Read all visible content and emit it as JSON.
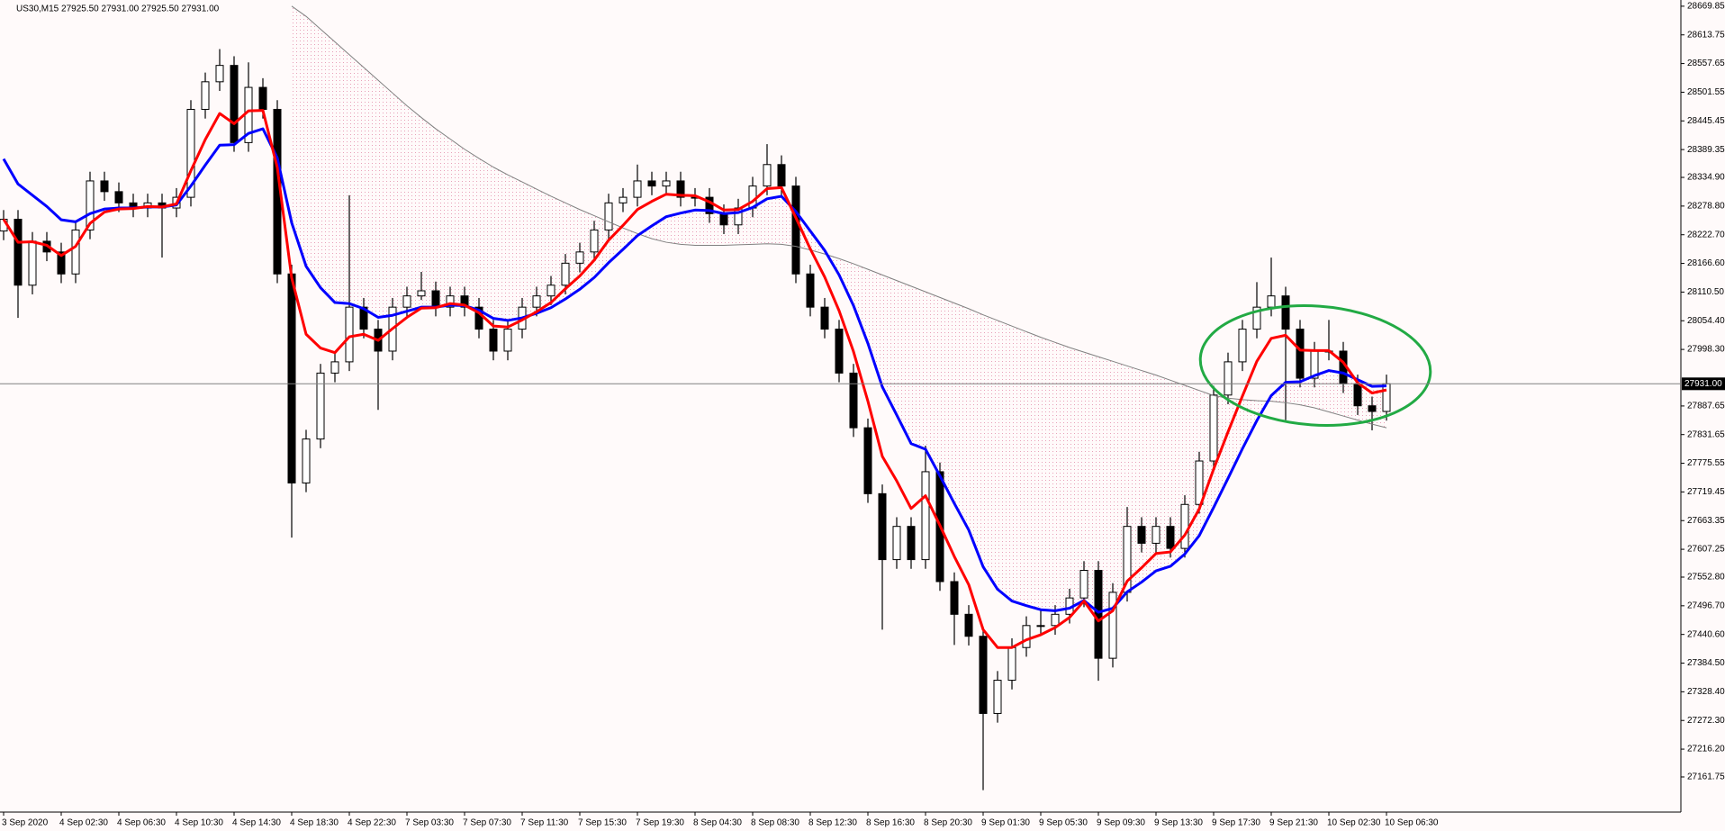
{
  "chart_data": {
    "type": "candlestick",
    "title": "US30,M15  27925.50 27931.00 27925.50 27931.00",
    "grid": false,
    "bull_color": "#ffffff",
    "bear_color": "#000000",
    "ylim": [
      27093,
      28682
    ],
    "yticks": [
      28669.85,
      28613.75,
      28557.65,
      28501.55,
      28445.45,
      28389.35,
      {
        "value": 28334.9,
        "label": "28334.90"
      },
      {
        "value": 28278.8,
        "label": "28278.80"
      },
      {
        "value": 28222.7,
        "label": "28222.70"
      },
      {
        "value": 28166.6,
        "label": "28166.60"
      },
      {
        "value": 28110.5,
        "label": "28110.50"
      },
      {
        "value": 28054.4,
        "label": "28054.40"
      },
      {
        "value": 27998.3,
        "label": "27998.30"
      },
      27887.65,
      27831.65,
      27775.55,
      27719.45,
      27663.35,
      27607.25,
      {
        "value": 27552.8,
        "label": "27552.80"
      },
      {
        "value": 27496.7,
        "label": "27496.70"
      },
      {
        "value": 27440.6,
        "label": "27440.60"
      },
      {
        "value": 27384.5,
        "label": "27384.50"
      },
      {
        "value": 27328.4,
        "label": "27328.40"
      },
      {
        "value": 27272.3,
        "label": "27272.30"
      },
      {
        "value": 27216.2,
        "label": "27216.20"
      },
      27161.75
    ],
    "price_line": {
      "value": 27931,
      "label": "27931.00"
    },
    "categories": [
      "3 Sep 2020",
      null,
      null,
      null,
      "4 Sep 02:30",
      null,
      null,
      null,
      "4 Sep 06:30",
      null,
      null,
      null,
      "4 Sep 10:30",
      null,
      null,
      null,
      "4 Sep 14:30",
      null,
      null,
      null,
      "4 Sep 18:30",
      null,
      null,
      null,
      "4 Sep 22:30",
      null,
      null,
      null,
      "7 Sep 03:30",
      null,
      null,
      null,
      "7 Sep 07:30",
      null,
      null,
      null,
      "7 Sep 11:30",
      null,
      null,
      null,
      "7 Sep 15:30",
      null,
      null,
      null,
      "7 Sep 19:30",
      null,
      null,
      null,
      "8 Sep 04:30",
      null,
      null,
      null,
      "8 Sep 08:30",
      null,
      null,
      null,
      "8 Sep 12:30",
      null,
      null,
      null,
      "8 Sep 16:30",
      null,
      null,
      null,
      "8 Sep 20:30",
      null,
      null,
      null,
      "9 Sep 01:30",
      null,
      null,
      null,
      "9 Sep 05:30",
      null,
      null,
      null,
      "9 Sep 09:30",
      null,
      null,
      null,
      "9 Sep 13:30",
      null,
      null,
      null,
      "9 Sep 17:30",
      null,
      null,
      null,
      "9 Sep 21:30",
      null,
      null,
      null,
      "10 Sep 02:30",
      null,
      null,
      null,
      "10 Sep 06:30"
    ],
    "open": [
      28230,
      28253,
      28124,
      28210,
      28189,
      28146,
      28232,
      28328,
      28307,
      28285,
      28275,
      28285,
      28275,
      28296,
      28468,
      28522,
      28554,
      28403,
      28511,
      28468,
      28146,
      27737,
      27823,
      27952,
      27974,
      28081,
      28038,
      27995,
      28081,
      28103,
      28113,
      28081,
      28103,
      28081,
      28038,
      27995,
      28038,
      28081,
      28103,
      28124,
      28167,
      28189,
      28232,
      28285,
      28296,
      28328,
      28318,
      28328,
      28296,
      28296,
      28264,
      28242,
      28275,
      28318,
      28360,
      28318,
      28146,
      28081,
      28038,
      27952,
      27845,
      27716,
      27587,
      27652,
      27587,
      27759,
      27544,
      27480,
      27437,
      27286,
      27351,
      27415,
      27458,
      27458,
      27480,
      27512,
      27566,
      27394,
      27523,
      27652,
      27619,
      27652,
      27609,
      27695,
      27780,
      27909,
      27974,
      28038,
      28081,
      28103,
      28038,
      27942,
      27995,
      27995,
      27931,
      27888,
      27877
    ],
    "high": [
      28271,
      28271,
      28228,
      28228,
      28207,
      28250,
      28346,
      28346,
      28325,
      28303,
      28303,
      28303,
      28314,
      28486,
      28540,
      28586,
      28572,
      28560,
      28529,
      28486,
      28164,
      27841,
      27970,
      27992,
      28300,
      28099,
      28056,
      28099,
      28121,
      28150,
      28131,
      28121,
      28121,
      28099,
      28056,
      28056,
      28099,
      28121,
      28142,
      28185,
      28207,
      28250,
      28303,
      28314,
      28360,
      28346,
      28346,
      28346,
      28314,
      28314,
      28282,
      28293,
      28336,
      28400,
      28378,
      28336,
      28164,
      28099,
      28056,
      27970,
      27863,
      27734,
      27670,
      27670,
      27810,
      27777,
      27562,
      27498,
      27455,
      27369,
      27433,
      27476,
      27490,
      27498,
      27530,
      27584,
      27584,
      27541,
      27690,
      27670,
      27670,
      27670,
      27713,
      27798,
      27927,
      27992,
      28056,
      28130,
      28178,
      28121,
      28056,
      28013,
      28056,
      28013,
      27949,
      27906,
      27949
    ],
    "low": [
      28212,
      28060,
      28106,
      28171,
      28128,
      28128,
      28214,
      28289,
      28267,
      28257,
      28257,
      28178,
      28257,
      28278,
      28450,
      28504,
      28385,
      28385,
      28450,
      28128,
      27630,
      27719,
      27805,
      27934,
      27956,
      28020,
      27880,
      27977,
      28063,
      28095,
      28063,
      28063,
      28063,
      28020,
      27977,
      27977,
      28020,
      28063,
      28085,
      28106,
      28149,
      28171,
      28214,
      28267,
      28278,
      28300,
      28300,
      28278,
      28278,
      28246,
      28224,
      28224,
      28257,
      28300,
      28300,
      28128,
      28063,
      28020,
      27934,
      27827,
      27698,
      27450,
      27569,
      27569,
      27569,
      27526,
      27420,
      27419,
      27136,
      27268,
      27333,
      27397,
      27440,
      27440,
      27462,
      27494,
      27350,
      27376,
      27505,
      27601,
      27601,
      27591,
      27591,
      27677,
      27762,
      27891,
      27956,
      28020,
      28063,
      27860,
      27924,
      27924,
      27977,
      27913,
      27870,
      27840,
      27859
    ],
    "close": [
      28253,
      28124,
      28210,
      28189,
      28146,
      28232,
      28328,
      28307,
      28285,
      28275,
      28285,
      28275,
      28296,
      28468,
      28522,
      28554,
      28403,
      28511,
      28468,
      28146,
      27737,
      27823,
      27952,
      27974,
      28081,
      28038,
      27995,
      28081,
      28103,
      28113,
      28081,
      28103,
      28081,
      28038,
      27995,
      28038,
      28081,
      28103,
      28124,
      28167,
      28189,
      28232,
      28285,
      28296,
      28328,
      28318,
      28328,
      28296,
      28296,
      28264,
      28242,
      28275,
      28318,
      28360,
      28318,
      28146,
      28081,
      28038,
      27952,
      27845,
      27716,
      27587,
      27652,
      27587,
      27759,
      27544,
      27480,
      27437,
      27286,
      27351,
      27415,
      27458,
      27458,
      27480,
      27512,
      27566,
      27394,
      27523,
      27652,
      27619,
      27652,
      27609,
      27695,
      27780,
      27909,
      27974,
      28038,
      28081,
      28103,
      28038,
      27942,
      27995,
      27995,
      27931,
      27888,
      27877,
      27931
    ],
    "lines": [
      {
        "color": "#808080",
        "values": [
          null,
          null,
          null,
          null,
          null,
          null,
          null,
          null,
          null,
          null,
          null,
          null,
          null,
          null,
          null,
          null,
          null,
          null,
          null,
          null,
          28670,
          28650,
          28625,
          28600,
          28575,
          28550,
          28525,
          28500,
          28475,
          28452,
          28430,
          28410,
          28390,
          28372,
          28355,
          28340,
          28326,
          28312,
          28298,
          28285,
          28272,
          28260,
          28248,
          28236,
          28225,
          28215,
          28208,
          28204,
          28202,
          28202,
          28202,
          28203,
          28204,
          28205,
          28204,
          28200,
          28193,
          28185,
          28176,
          28166,
          28155,
          28144,
          28133,
          28122,
          28111,
          28100,
          28089,
          28078,
          28066,
          28055,
          28044,
          28033,
          28022,
          28012,
          28002,
          27993,
          27984,
          27975,
          27966,
          27957,
          27948,
          27938,
          27928,
          27918,
          27908,
          27903,
          27900,
          27898,
          27897,
          27894,
          27890,
          27884,
          27876,
          27868,
          27860,
          27852,
          27845
        ]
      },
      {
        "color": "#0000ff",
        "values": [
          28371,
          28322,
          28300,
          28278,
          28252,
          28248,
          28264,
          28273,
          28275,
          28275,
          28277,
          28277,
          28281,
          28318,
          28359,
          28398,
          28399,
          28421,
          28430,
          28373,
          28246,
          28161,
          28119,
          28090,
          28088,
          28078,
          28061,
          28065,
          28073,
          28081,
          28081,
          28085,
          28084,
          28075,
          28059,
          28055,
          28060,
          28069,
          28080,
          28097,
          28116,
          28139,
          28168,
          28194,
          28221,
          28240,
          28258,
          28265,
          28271,
          28270,
          28264,
          28266,
          28276,
          28293,
          28298,
          28268,
          28230,
          28192,
          28144,
          28084,
          28010,
          27925,
          27870,
          27814,
          27803,
          27751,
          27697,
          27645,
          27573,
          27529,
          27506,
          27497,
          27489,
          27487,
          27492,
          27507,
          27484,
          27492,
          27524,
          27543,
          27565,
          27574,
          27598,
          27634,
          27689,
          27746,
          27804,
          27859,
          27908,
          27934,
          27935,
          27947,
          27957,
          27952,
          27939,
          27926,
          27927
        ]
      },
      {
        "color": "#ff0000",
        "values": [
          28253,
          28208,
          28209,
          28202,
          28182,
          28200,
          28245,
          28267,
          28273,
          28274,
          28278,
          28277,
          28283,
          28348,
          28409,
          28460,
          28440,
          28465,
          28466,
          28354,
          28138,
          28028,
          28001,
          27992,
          28023,
          28028,
          28016,
          28039,
          28061,
          28079,
          28080,
          28088,
          28085,
          28070,
          28044,
          28042,
          28056,
          28072,
          28090,
          28117,
          28142,
          28173,
          28212,
          28241,
          28272,
          28288,
          28302,
          28300,
          28299,
          28287,
          28271,
          28272,
          28288,
          28313,
          28315,
          28256,
          28195,
          28140,
          28074,
          27994,
          27897,
          27789,
          27741,
          27687,
          27712,
          27654,
          27593,
          27538,
          27450,
          27415,
          27415,
          27430,
          27440,
          27454,
          27474,
          27506,
          27467,
          27487,
          27545,
          27571,
          27599,
          27602,
          27635,
          27686,
          27764,
          27837,
          27907,
          27975,
          28020,
          28026,
          27997,
          27996,
          27996,
          27973,
          27933,
          27913,
          27919
        ]
      }
    ]
  }
}
